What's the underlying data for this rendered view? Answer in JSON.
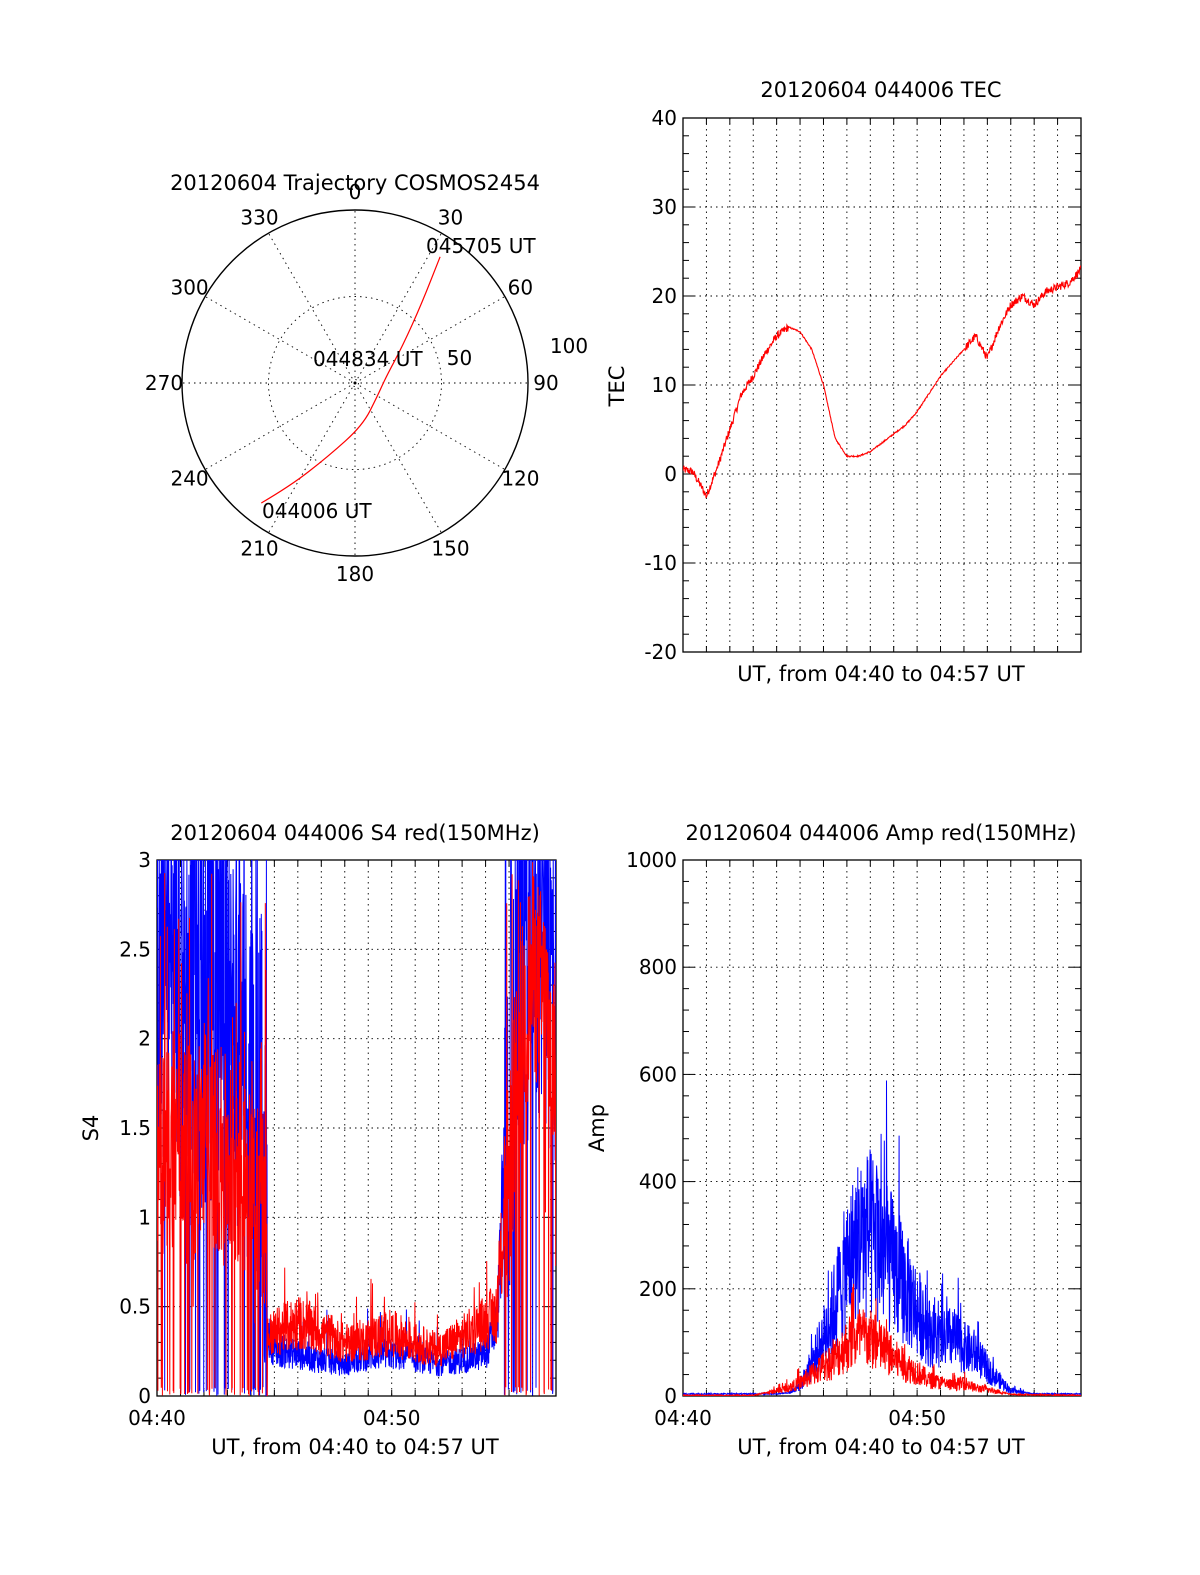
{
  "colors": {
    "red": "#ff0000",
    "blue": "#0000ff",
    "grid": "#000000"
  },
  "chart_data": [
    {
      "type": "polar",
      "title": "20120604 Trajectory COSMOS2454",
      "angle_labels": [
        "0",
        "30",
        "60",
        "90",
        "120",
        "150",
        "180",
        "210",
        "240",
        "270",
        "300",
        "330"
      ],
      "radius_labels": [
        "50",
        "100"
      ],
      "radius_range": [
        0,
        100
      ],
      "start_label": "044006 UT",
      "mid_label": "044834 UT",
      "end_label": "045705 UT",
      "series": [
        {
          "color": "red",
          "points": [
            [
              218,
              88
            ],
            [
              212,
              70
            ],
            [
              200,
              45
            ],
            [
              170,
              25
            ],
            [
              120,
              15
            ],
            [
              80,
              18
            ],
            [
              52,
              35
            ],
            [
              40,
              60
            ],
            [
              34,
              88
            ]
          ]
        }
      ]
    },
    {
      "type": "line",
      "title": "20120604 044006 TEC",
      "xlabel": "UT, from 04:40 to 04:57 UT",
      "ylabel": "TEC",
      "xlim": [
        0,
        17.0
      ],
      "ylim": [
        -20,
        40
      ],
      "yticks": [
        "-20",
        "-10",
        "0",
        "10",
        "20",
        "30",
        "40"
      ],
      "grid": true,
      "series": [
        {
          "color": "red",
          "x": [
            0.0,
            0.4,
            0.8,
            1.0,
            1.5,
            2.0,
            2.5,
            3.0,
            3.5,
            4.0,
            4.5,
            5.0,
            5.5,
            6.0,
            6.5,
            7.0,
            7.5,
            8.0,
            8.5,
            9.0,
            9.5,
            10.0,
            10.5,
            11.0,
            11.5,
            12.0,
            12.5,
            13.0,
            13.5,
            14.0,
            14.5,
            15.0,
            15.5,
            16.0,
            16.5,
            17.0
          ],
          "y": [
            0.5,
            0.3,
            -1.5,
            -2.5,
            1.0,
            5.0,
            9.0,
            11.0,
            13.5,
            15.5,
            16.5,
            16.0,
            14.0,
            10.0,
            4.0,
            2.0,
            2.0,
            2.5,
            3.5,
            4.5,
            5.5,
            7.0,
            9.0,
            11.0,
            12.5,
            14.0,
            15.5,
            13.0,
            16.5,
            19.0,
            20.0,
            19.0,
            20.5,
            21.0,
            21.5,
            23.0
          ]
        }
      ]
    },
    {
      "type": "line",
      "title": "20120604 044006 S4 red(150MHz)",
      "xlabel": "UT, from 04:40 to 04:57 UT",
      "ylabel": "S4",
      "xlim": [
        0,
        17.0
      ],
      "ylim": [
        0,
        3
      ],
      "xticks": [
        "04:40",
        "04:50"
      ],
      "yticks": [
        "0",
        "0.5",
        "1",
        "1.5",
        "2",
        "2.5",
        "3"
      ],
      "grid": true,
      "series": [
        {
          "color": "blue",
          "x": [
            0.0,
            0.5,
            1.0,
            1.5,
            2.0,
            2.5,
            3.0,
            3.5,
            4.0,
            4.5,
            4.7,
            5.0,
            6.0,
            7.0,
            8.0,
            9.0,
            10.0,
            11.0,
            12.0,
            13.0,
            14.0,
            14.5,
            15.0,
            15.5,
            16.0,
            16.5,
            17.0
          ],
          "y": [
            2.2,
            2.4,
            2.2,
            2.3,
            2.1,
            2.2,
            2.1,
            2.0,
            1.8,
            1.6,
            0.3,
            0.22,
            0.2,
            0.17,
            0.15,
            0.19,
            0.2,
            0.18,
            0.15,
            0.17,
            0.2,
            0.35,
            1.6,
            2.4,
            2.6,
            2.5,
            2.3
          ]
        },
        {
          "color": "red",
          "x": [
            0.0,
            0.5,
            1.0,
            1.5,
            2.0,
            2.5,
            3.0,
            3.5,
            4.0,
            4.5,
            4.7,
            5.0,
            6.0,
            7.0,
            8.0,
            9.0,
            10.0,
            11.0,
            12.0,
            13.0,
            14.0,
            14.5,
            15.0,
            15.5,
            16.0,
            16.5,
            17.0
          ],
          "y": [
            1.3,
            1.4,
            1.5,
            1.3,
            1.5,
            1.4,
            1.3,
            1.3,
            1.2,
            1.1,
            0.28,
            0.3,
            0.35,
            0.3,
            0.25,
            0.27,
            0.3,
            0.25,
            0.22,
            0.28,
            0.35,
            0.4,
            1.2,
            2.0,
            2.4,
            2.2,
            1.8
          ]
        }
      ]
    },
    {
      "type": "line",
      "title": "20120604 044006 Amp red(150MHz)",
      "xlabel": "UT, from 04:40 to 04:57 UT",
      "ylabel": "Amp",
      "xlim": [
        0,
        17.0
      ],
      "ylim": [
        0,
        1000
      ],
      "xticks": [
        "04:40",
        "04:50"
      ],
      "yticks": [
        "0",
        "200",
        "400",
        "600",
        "800",
        "1000"
      ],
      "grid": true,
      "series": [
        {
          "color": "blue",
          "x": [
            0.0,
            3.0,
            4.0,
            4.5,
            5.0,
            5.5,
            6.0,
            6.5,
            7.0,
            7.5,
            8.0,
            8.5,
            9.0,
            9.5,
            10.0,
            10.5,
            11.0,
            11.5,
            12.0,
            12.5,
            13.0,
            13.5,
            14.0,
            15.0,
            17.0
          ],
          "y": [
            3,
            3,
            3,
            5,
            20,
            60,
            110,
            170,
            240,
            290,
            300,
            280,
            240,
            200,
            160,
            120,
            100,
            110,
            90,
            80,
            50,
            30,
            10,
            3,
            3
          ]
        },
        {
          "color": "red",
          "x": [
            0.0,
            3.0,
            3.5,
            4.0,
            4.5,
            5.0,
            5.5,
            6.0,
            6.5,
            7.0,
            7.5,
            8.0,
            8.5,
            9.0,
            9.5,
            10.0,
            10.5,
            11.0,
            11.5,
            12.0,
            12.5,
            13.0,
            13.5,
            14.0,
            17.0
          ],
          "y": [
            0,
            0,
            5,
            10,
            15,
            25,
            40,
            55,
            70,
            95,
            110,
            105,
            90,
            70,
            55,
            45,
            30,
            25,
            20,
            25,
            15,
            12,
            8,
            2,
            0
          ]
        }
      ]
    }
  ]
}
